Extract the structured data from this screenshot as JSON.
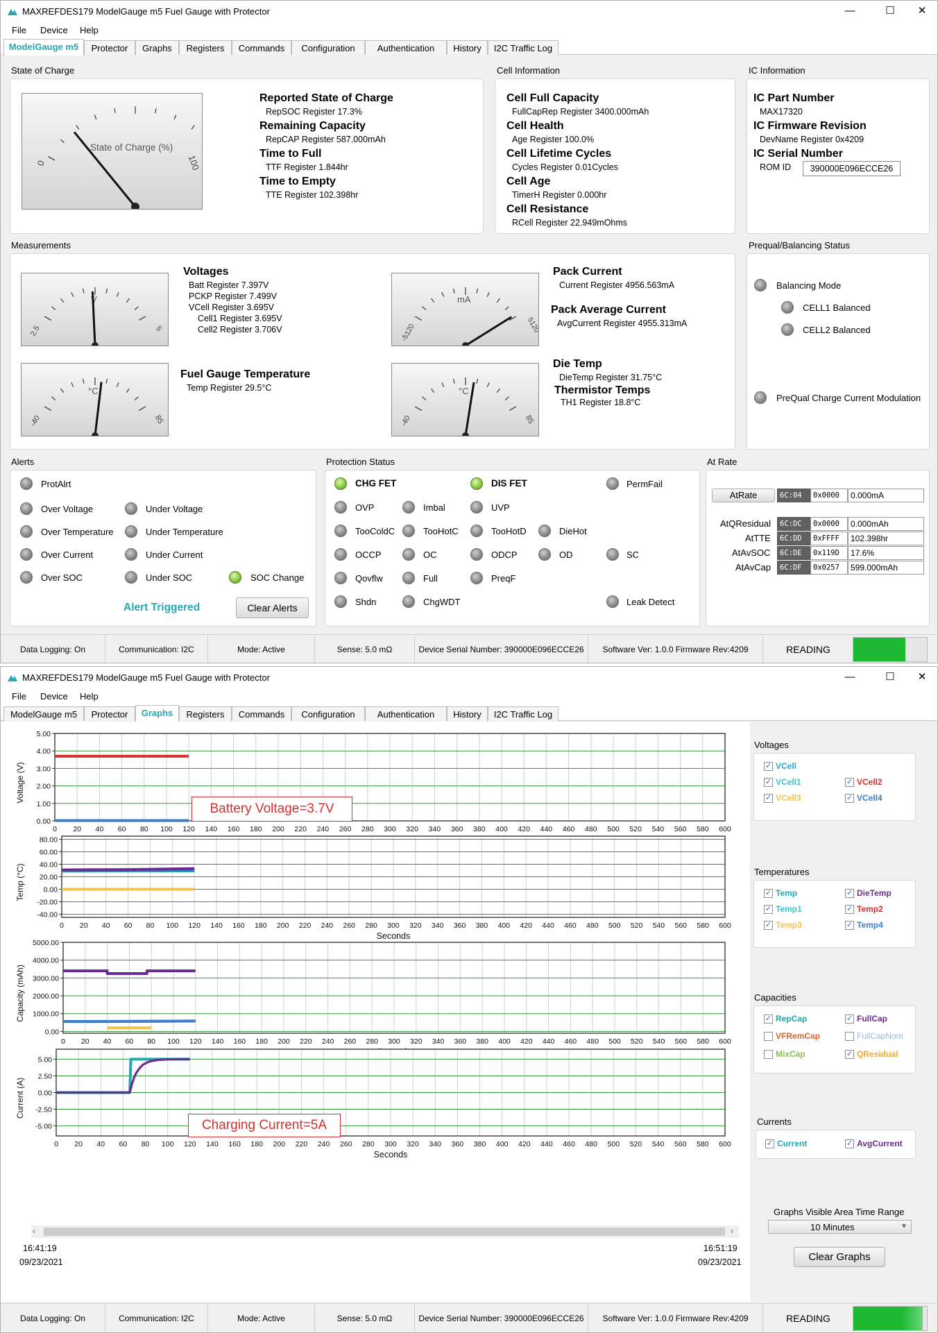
{
  "app_title": "MAXREFDES179 ModelGauge m5 Fuel Gauge with Protector",
  "menu": {
    "file": "File",
    "device": "Device",
    "help": "Help"
  },
  "tabs": {
    "t0": "ModelGauge m5",
    "t1": "Protector",
    "t2": "Graphs",
    "t3": "Registers",
    "t4": "Commands",
    "t5": "Configuration",
    "t6": "Authentication",
    "t7": "History",
    "t8": "I2C Traffic Log"
  },
  "window_controls": {
    "min": "—",
    "max": "☐",
    "close": "✕"
  },
  "soc": {
    "group": "State of Charge",
    "gauge_label": "State of Charge (%)",
    "gauge_min": "0",
    "gauge_max": "100",
    "value_percent": 17.3,
    "i0h": "Reported State of Charge",
    "i0v": "RepSOC Register 17.3%",
    "i1h": "Remaining Capacity",
    "i1v": "RepCAP Register 587.000mAh",
    "i2h": "Time to Full",
    "i2v": "TTF Register 1.844hr",
    "i3h": "Time to Empty",
    "i3v": "TTE Register 102.398hr"
  },
  "cell": {
    "group": "Cell Information",
    "i0h": "Cell Full Capacity",
    "i0v": "FullCapRep Register 3400.000mAh",
    "i1h": "Cell Health",
    "i1v": "Age Register 100.0%",
    "i2h": "Cell Lifetime Cycles",
    "i2v": "Cycles Register 0.01Cycles",
    "i3h": "Cell Age",
    "i3v": "TimerH Register 0.000hr",
    "i4h": "Cell Resistance",
    "i4v": "RCell Register 22.949mOhms"
  },
  "ic": {
    "group": "IC Information",
    "part_h": "IC Part Number",
    "part_v": "MAX17320",
    "fw_h": "IC Firmware Revision",
    "fw_v": "DevName Register 0x4209",
    "sn_h": "IC Serial Number",
    "sn_label": "ROM ID",
    "sn_value": "390000E096ECCE26"
  },
  "meas": {
    "group": "Measurements",
    "voltages_h": "Voltages",
    "v0": "Batt Register 7.397V",
    "v1": "PCKP Register 7.499V",
    "v2": "VCell Register 3.695V",
    "v3": "Cell1 Register 3.695V",
    "v4": "Cell2 Register 3.706V",
    "fg_temp_h": "Fuel Gauge Temperature",
    "fg_temp_v": "Temp Register 29.5°C",
    "pack_h": "Pack Current",
    "pack_v": "Current Register 4956.563mA",
    "avg_h": "Pack Average Current",
    "avg_v": "AvgCurrent Register 4955.313mA",
    "die_h": "Die Temp",
    "die_v": "DieTemp Register 31.75°C",
    "therm_h": "Thermistor Temps",
    "therm_v": "TH1 Register 18.8°C",
    "gv_unit": "V",
    "gv_min": "2.5",
    "gv_max": "5",
    "gt_unit": "°C",
    "gt_min": "-40",
    "gt_max": "85",
    "gi_unit": "mA",
    "gi_min": "-5120",
    "gi_max": "5120",
    "gd_unit": "°C",
    "gd_min": "-40",
    "gd_max": "85"
  },
  "prequal": {
    "group": "Prequal/Balancing Status",
    "balancing": "Balancing Mode",
    "cell1": "CELL1 Balanced",
    "cell2": "CELL2 Balanced",
    "prequal": "PreQual Charge Current Modulation"
  },
  "alerts": {
    "group": "Alerts",
    "protalrt": "ProtAlrt",
    "ov": "Over Voltage",
    "uv": "Under Voltage",
    "ot": "Over Temperature",
    "ut": "Under Temperature",
    "oc": "Over Current",
    "uc": "Under Current",
    "osoc": "Over SOC",
    "usoc": "Under SOC",
    "socchg": "SOC Change",
    "triggered": "Alert Triggered",
    "clear": "Clear Alerts"
  },
  "prot": {
    "group": "Protection Status",
    "chg": "CHG FET",
    "dis": "DIS FET",
    "permfail": "PermFail",
    "ovp": "OVP",
    "imbal": "Imbal",
    "uvp": "UVP",
    "toocoldc": "TooColdC",
    "toohotc": "TooHotC",
    "toohotd": "TooHotD",
    "diehot": "DieHot",
    "occp": "OCCP",
    "oc": "OC",
    "odcp": "ODCP",
    "od": "OD",
    "sc": "SC",
    "qovflw": "Qovflw",
    "full": "Full",
    "preqf": "PreqF",
    "shdn": "Shdn",
    "chgwdt": "ChgWDT",
    "leak": "Leak Detect"
  },
  "atrate": {
    "group": "At Rate",
    "button": "AtRate",
    "r0a": "6C:04",
    "r0h": "0x0000",
    "r0v": "0.000mA",
    "r1l": "AtQResidual",
    "r1a": "6C:DC",
    "r1h": "0x0000",
    "r1v": "0.000mAh",
    "r2l": "AtTTE",
    "r2a": "6C:DD",
    "r2h": "0xFFFF",
    "r2v": "102.398hr",
    "r3l": "AtAvSOC",
    "r3a": "6C:DE",
    "r3h": "0x119D",
    "r3v": "17.6%",
    "r4l": "AtAvCap",
    "r4a": "6C:DF",
    "r4h": "0x0257",
    "r4v": "599.000mAh"
  },
  "status": {
    "logging": "Data Logging: On",
    "comm": "Communication: I2C",
    "mode": "Mode: Active",
    "sense": "Sense: 5.0 mΩ",
    "serial": "Device Serial Number: 390000E096ECCE26",
    "sw": "Software Ver: 1.0.0  Firmware Rev:4209",
    "reading": "READING"
  },
  "graphs": {
    "x_label": "Seconds",
    "voltage_annotation": "Battery Voltage=3.7V",
    "curr_annotation": "Charging Current=5A",
    "time_left": "16:41:19",
    "date_left": "09/23/2021",
    "time_right": "16:51:19",
    "date_right": "09/23/2021"
  },
  "legend": {
    "volt_title": "Voltages",
    "vcell": "VCell",
    "vcell1": "VCell1",
    "vcell2": "VCell2",
    "vcell3": "VCell3",
    "vcell4": "VCell4",
    "temp_title": "Temperatures",
    "temp": "Temp",
    "dietemp": "DieTemp",
    "temp1": "Temp1",
    "temp2": "Temp2",
    "temp3": "Temp3",
    "temp4": "Temp4",
    "cap_title": "Capacities",
    "repcap": "RepCap",
    "fullcap": "FullCap",
    "vfremcap": "VFRemCap",
    "fullcapnom": "FullCapNom",
    "mixcap": "MixCap",
    "qresidual": "QResidual",
    "curr_title": "Currents",
    "current": "Current",
    "avgcurrent": "AvgCurrent",
    "range_title": "Graphs Visible Area Time Range",
    "range_value": "10 Minutes",
    "clear": "Clear Graphs"
  },
  "colors": {
    "accent": "#25a8b4",
    "red": "#d32f2f",
    "grid": "#2e9a3a",
    "purple": "#6a2c8f",
    "teal": "#21a9b0",
    "blue": "#3d7ec9",
    "yellow": "#f2c14e",
    "reading_bar": "#1fb832"
  },
  "gauges": {
    "soc": {
      "value": 17.3,
      "lo": 0,
      "hi": 100
    },
    "v": {
      "value": 3.695,
      "lo": 2.5,
      "hi": 5
    },
    "t": {
      "value": 29.5,
      "lo": -40,
      "hi": 85
    },
    "i": {
      "value": 4956.563,
      "lo": -5120,
      "hi": 5120
    },
    "d": {
      "value": 31.75,
      "lo": -40,
      "hi": 85
    }
  },
  "chart_data": [
    {
      "type": "line",
      "title": "",
      "xlabel": "Seconds",
      "ylabel": "Voltage (V)",
      "xlim": [
        0,
        600
      ],
      "ylim": [
        0,
        5
      ],
      "x_ticks": [
        0,
        20,
        40,
        60,
        80,
        100,
        120,
        140,
        160,
        180,
        200,
        220,
        240,
        260,
        280,
        300,
        320,
        340,
        360,
        380,
        400,
        420,
        440,
        460,
        480,
        500,
        520,
        540,
        560,
        580,
        600
      ],
      "y_ticks": [
        "5.00",
        "4.00",
        "3.00",
        "2.00",
        "1.00",
        "0.00"
      ],
      "y_tick_values": [
        5,
        4,
        3,
        2,
        1,
        0
      ],
      "series": [
        {
          "name": "VCell",
          "color": "#d32f2f",
          "x": [
            0,
            120
          ],
          "values": [
            3.7,
            3.7
          ]
        },
        {
          "name": "VCell4",
          "color": "#3d7ec9",
          "x": [
            0,
            120
          ],
          "values": [
            0.02,
            0.02
          ]
        }
      ]
    },
    {
      "type": "line",
      "title": "",
      "xlabel": "Seconds",
      "ylabel": "Temp (°C)",
      "xlim": [
        0,
        600
      ],
      "ylim": [
        -45,
        85
      ],
      "x_ticks": [
        0,
        20,
        40,
        60,
        80,
        100,
        120,
        140,
        160,
        180,
        200,
        220,
        240,
        260,
        280,
        300,
        320,
        340,
        360,
        380,
        400,
        420,
        440,
        460,
        480,
        500,
        520,
        540,
        560,
        580,
        600
      ],
      "y_ticks": [
        "80.00",
        "60.00",
        "40.00",
        "20.00",
        "0.00",
        "-20.00",
        "-40.00"
      ],
      "y_tick_values": [
        80,
        60,
        40,
        20,
        0,
        -20,
        -40
      ],
      "series": [
        {
          "name": "Temp1",
          "color": "#21a9b0",
          "x": [
            0,
            120
          ],
          "values": [
            29,
            29.5
          ]
        },
        {
          "name": "Temp4",
          "color": "#3d7ec9",
          "x": [
            0,
            120
          ],
          "values": [
            30,
            30.5
          ]
        },
        {
          "name": "DieTemp",
          "color": "#6a2c8f",
          "x": [
            0,
            60,
            120
          ],
          "values": [
            31,
            31.5,
            33
          ]
        },
        {
          "name": "Temp3",
          "color": "#f2c14e",
          "x": [
            0,
            120
          ],
          "values": [
            0,
            0
          ]
        }
      ]
    },
    {
      "type": "line",
      "title": "",
      "xlabel": "Seconds",
      "ylabel": "Capacity (mAh)",
      "xlim": [
        0,
        600
      ],
      "ylim": [
        -100,
        5000
      ],
      "x_ticks": [
        0,
        20,
        40,
        60,
        80,
        100,
        120,
        140,
        160,
        180,
        200,
        220,
        240,
        260,
        280,
        300,
        320,
        340,
        360,
        380,
        400,
        420,
        440,
        460,
        480,
        500,
        520,
        540,
        560,
        580,
        600
      ],
      "y_ticks": [
        "5000.00",
        "4000.00",
        "3000.00",
        "2000.00",
        "1000.00",
        "0.00"
      ],
      "y_tick_values": [
        5000,
        4000,
        3000,
        2000,
        1000,
        0
      ],
      "series": [
        {
          "name": "FullCap",
          "color": "#6a2c8f",
          "x": [
            0,
            40,
            40,
            76,
            76,
            120
          ],
          "values": [
            3400,
            3400,
            3250,
            3250,
            3400,
            3400
          ]
        },
        {
          "name": "RepCap",
          "color": "#21a9b0",
          "x": [
            0,
            60,
            120
          ],
          "values": [
            550,
            560,
            590
          ]
        },
        {
          "name": "QResidual",
          "color": "#f2c14e",
          "x": [
            40,
            80
          ],
          "values": [
            200,
            200
          ]
        },
        {
          "name": "VFRemCap",
          "color": "#3d7ec9",
          "x": [
            0,
            120
          ],
          "values": [
            560,
            580
          ]
        }
      ]
    },
    {
      "type": "line",
      "title": "",
      "xlabel": "Seconds",
      "ylabel": "Current (A)",
      "xlim": [
        0,
        600
      ],
      "ylim": [
        -6.5,
        6.5
      ],
      "x_ticks": [
        0,
        20,
        40,
        60,
        80,
        100,
        120,
        140,
        160,
        180,
        200,
        220,
        240,
        260,
        280,
        300,
        320,
        340,
        360,
        380,
        400,
        420,
        440,
        460,
        480,
        500,
        520,
        540,
        560,
        580,
        600
      ],
      "y_ticks": [
        "5.00",
        "2.50",
        "0.00",
        "-2.50",
        "-5.00"
      ],
      "y_tick_values": [
        5,
        2.5,
        0,
        -2.5,
        -5
      ],
      "series": [
        {
          "name": "Current",
          "color": "#21a9b0",
          "x": [
            0,
            66,
            67,
            120
          ],
          "values": [
            0,
            0,
            5,
            5
          ]
        },
        {
          "name": "AvgCurrent",
          "color": "#6a2c8f",
          "x": [
            0,
            66,
            68,
            70,
            72,
            75,
            78,
            82,
            86,
            92,
            100,
            110,
            120
          ],
          "values": [
            0,
            0,
            1.3,
            2.3,
            3.0,
            3.7,
            4.2,
            4.55,
            4.75,
            4.9,
            4.97,
            5,
            5
          ]
        }
      ]
    }
  ]
}
